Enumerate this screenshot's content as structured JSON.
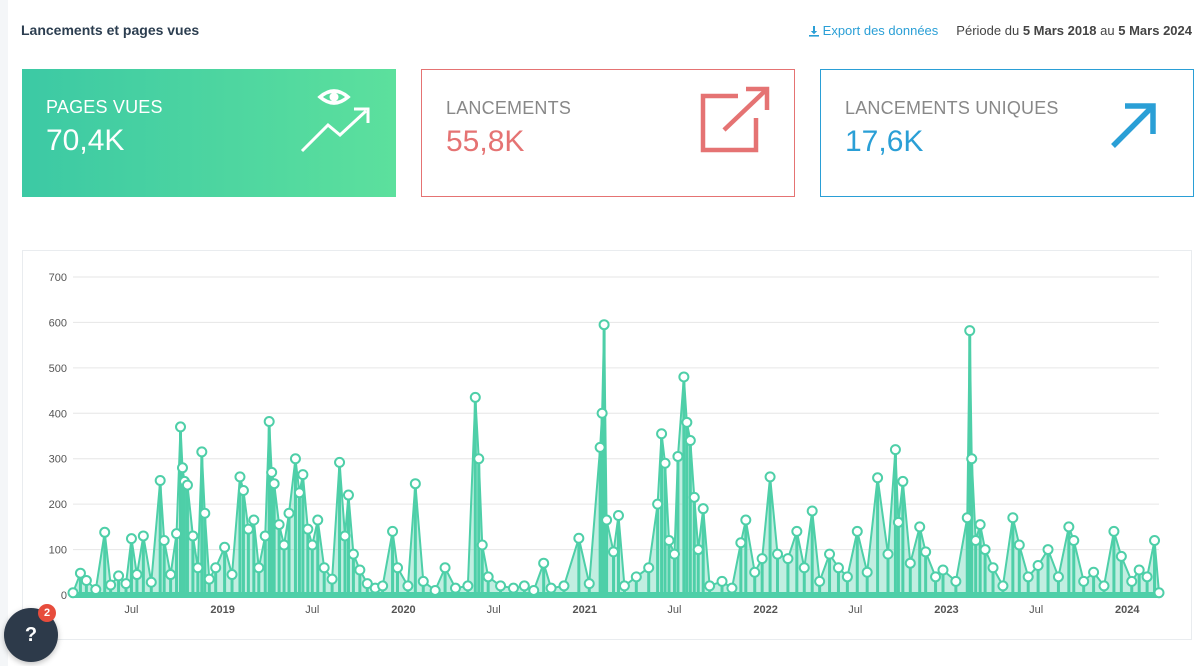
{
  "header": {
    "title": "Lancements et pages vues",
    "export_label": "Export des données",
    "period_prefix": "Période du",
    "period_start": "5 Mars 2018",
    "period_mid": "au",
    "period_end": "5 Mars 2024"
  },
  "cards": {
    "pages": {
      "label": "PAGES VUES",
      "value": "70,4K",
      "icon": "eye-trend-icon"
    },
    "launches": {
      "label": "LANCEMENTS",
      "value": "55,8K",
      "icon": "external-link-icon"
    },
    "unique": {
      "label": "LANCEMENTS UNIQUES",
      "value": "17,6K",
      "icon": "arrow-up-right-icon"
    }
  },
  "colors": {
    "accent_green": "#3cc9a4",
    "accent_red": "#e57373",
    "accent_blue": "#2a9fd6",
    "series": "#4ecfa8"
  },
  "help": {
    "label": "?",
    "badge": "2"
  },
  "chart_data": {
    "type": "line",
    "ylim": [
      0,
      700
    ],
    "yticks": [
      "0",
      "100",
      "200",
      "300",
      "400",
      "500",
      "600",
      "700"
    ],
    "xlim": [
      "2018-03-05",
      "2024-03-05"
    ],
    "xticks": [
      {
        "label": "Jul",
        "date": "2018-07-01",
        "bold": false
      },
      {
        "label": "2019",
        "date": "2019-01-01",
        "bold": true
      },
      {
        "label": "Jul",
        "date": "2019-07-01",
        "bold": false
      },
      {
        "label": "2020",
        "date": "2020-01-01",
        "bold": true
      },
      {
        "label": "Jul",
        "date": "2020-07-01",
        "bold": false
      },
      {
        "label": "2021",
        "date": "2021-01-01",
        "bold": true
      },
      {
        "label": "Jul",
        "date": "2021-07-01",
        "bold": false
      },
      {
        "label": "2022",
        "date": "2022-01-01",
        "bold": true
      },
      {
        "label": "Jul",
        "date": "2022-07-01",
        "bold": false
      },
      {
        "label": "2023",
        "date": "2023-01-01",
        "bold": true
      },
      {
        "label": "Jul",
        "date": "2023-07-01",
        "bold": false
      },
      {
        "label": "2024",
        "date": "2024-01-01",
        "bold": true
      }
    ],
    "grid": true,
    "series": [
      {
        "points": [
          [
            "2018-03-05",
            5
          ],
          [
            "2018-03-20",
            48
          ],
          [
            "2018-04-01",
            32
          ],
          [
            "2018-04-20",
            12
          ],
          [
            "2018-05-08",
            138
          ],
          [
            "2018-05-20",
            22
          ],
          [
            "2018-06-05",
            42
          ],
          [
            "2018-06-20",
            25
          ],
          [
            "2018-07-01",
            124
          ],
          [
            "2018-07-12",
            45
          ],
          [
            "2018-07-25",
            130
          ],
          [
            "2018-08-10",
            28
          ],
          [
            "2018-08-28",
            252
          ],
          [
            "2018-09-05",
            120
          ],
          [
            "2018-09-18",
            45
          ],
          [
            "2018-09-30",
            135
          ],
          [
            "2018-10-08",
            370
          ],
          [
            "2018-10-12",
            280
          ],
          [
            "2018-10-16",
            250
          ],
          [
            "2018-10-22",
            242
          ],
          [
            "2018-11-02",
            130
          ],
          [
            "2018-11-12",
            60
          ],
          [
            "2018-11-20",
            315
          ],
          [
            "2018-11-26",
            180
          ],
          [
            "2018-12-05",
            35
          ],
          [
            "2018-12-18",
            60
          ],
          [
            "2019-01-05",
            105
          ],
          [
            "2019-01-20",
            45
          ],
          [
            "2019-02-05",
            260
          ],
          [
            "2019-02-12",
            230
          ],
          [
            "2019-02-22",
            145
          ],
          [
            "2019-03-05",
            165
          ],
          [
            "2019-03-15",
            60
          ],
          [
            "2019-03-28",
            130
          ],
          [
            "2019-04-05",
            382
          ],
          [
            "2019-04-10",
            270
          ],
          [
            "2019-04-15",
            245
          ],
          [
            "2019-04-25",
            155
          ],
          [
            "2019-05-05",
            110
          ],
          [
            "2019-05-15",
            180
          ],
          [
            "2019-05-28",
            300
          ],
          [
            "2019-06-05",
            225
          ],
          [
            "2019-06-12",
            265
          ],
          [
            "2019-06-22",
            145
          ],
          [
            "2019-07-01",
            110
          ],
          [
            "2019-07-12",
            165
          ],
          [
            "2019-07-25",
            60
          ],
          [
            "2019-08-10",
            35
          ],
          [
            "2019-08-25",
            292
          ],
          [
            "2019-09-05",
            130
          ],
          [
            "2019-09-12",
            220
          ],
          [
            "2019-09-22",
            90
          ],
          [
            "2019-10-05",
            55
          ],
          [
            "2019-10-20",
            25
          ],
          [
            "2019-11-05",
            15
          ],
          [
            "2019-11-20",
            20
          ],
          [
            "2019-12-10",
            140
          ],
          [
            "2019-12-20",
            60
          ],
          [
            "2020-01-10",
            20
          ],
          [
            "2020-01-25",
            245
          ],
          [
            "2020-02-10",
            30
          ],
          [
            "2020-03-05",
            10
          ],
          [
            "2020-03-25",
            60
          ],
          [
            "2020-04-15",
            15
          ],
          [
            "2020-05-10",
            20
          ],
          [
            "2020-05-25",
            435
          ],
          [
            "2020-06-01",
            300
          ],
          [
            "2020-06-08",
            110
          ],
          [
            "2020-06-20",
            40
          ],
          [
            "2020-07-15",
            20
          ],
          [
            "2020-08-10",
            15
          ],
          [
            "2020-09-01",
            20
          ],
          [
            "2020-09-20",
            10
          ],
          [
            "2020-10-10",
            70
          ],
          [
            "2020-10-25",
            15
          ],
          [
            "2020-11-20",
            20
          ],
          [
            "2020-12-20",
            125
          ],
          [
            "2021-01-10",
            25
          ],
          [
            "2021-02-01",
            325
          ],
          [
            "2021-02-05",
            400
          ],
          [
            "2021-02-09",
            595
          ],
          [
            "2021-02-14",
            165
          ],
          [
            "2021-02-28",
            95
          ],
          [
            "2021-03-10",
            175
          ],
          [
            "2021-03-22",
            20
          ],
          [
            "2021-04-15",
            40
          ],
          [
            "2021-05-10",
            60
          ],
          [
            "2021-05-28",
            200
          ],
          [
            "2021-06-05",
            355
          ],
          [
            "2021-06-12",
            290
          ],
          [
            "2021-06-20",
            120
          ],
          [
            "2021-07-01",
            90
          ],
          [
            "2021-07-08",
            305
          ],
          [
            "2021-07-20",
            480
          ],
          [
            "2021-07-26",
            380
          ],
          [
            "2021-08-02",
            340
          ],
          [
            "2021-08-10",
            215
          ],
          [
            "2021-08-18",
            100
          ],
          [
            "2021-08-28",
            190
          ],
          [
            "2021-09-10",
            20
          ],
          [
            "2021-10-05",
            30
          ],
          [
            "2021-10-25",
            15
          ],
          [
            "2021-11-12",
            115
          ],
          [
            "2021-11-22",
            165
          ],
          [
            "2021-12-10",
            50
          ],
          [
            "2021-12-25",
            80
          ],
          [
            "2022-01-10",
            260
          ],
          [
            "2022-01-25",
            90
          ],
          [
            "2022-02-15",
            80
          ],
          [
            "2022-03-05",
            140
          ],
          [
            "2022-03-20",
            60
          ],
          [
            "2022-04-05",
            185
          ],
          [
            "2022-04-20",
            30
          ],
          [
            "2022-05-10",
            90
          ],
          [
            "2022-05-28",
            60
          ],
          [
            "2022-06-15",
            40
          ],
          [
            "2022-07-05",
            140
          ],
          [
            "2022-07-25",
            50
          ],
          [
            "2022-08-15",
            258
          ],
          [
            "2022-09-05",
            90
          ],
          [
            "2022-09-20",
            320
          ],
          [
            "2022-09-26",
            160
          ],
          [
            "2022-10-05",
            250
          ],
          [
            "2022-10-20",
            70
          ],
          [
            "2022-11-08",
            150
          ],
          [
            "2022-11-20",
            95
          ],
          [
            "2022-12-10",
            40
          ],
          [
            "2022-12-25",
            55
          ],
          [
            "2023-01-20",
            30
          ],
          [
            "2023-02-12",
            170
          ],
          [
            "2023-02-17",
            582
          ],
          [
            "2023-02-21",
            300
          ],
          [
            "2023-03-01",
            120
          ],
          [
            "2023-03-10",
            155
          ],
          [
            "2023-03-20",
            100
          ],
          [
            "2023-04-05",
            60
          ],
          [
            "2023-04-25",
            20
          ],
          [
            "2023-05-15",
            170
          ],
          [
            "2023-05-28",
            110
          ],
          [
            "2023-06-15",
            40
          ],
          [
            "2023-07-05",
            65
          ],
          [
            "2023-07-25",
            100
          ],
          [
            "2023-08-15",
            40
          ],
          [
            "2023-09-05",
            150
          ],
          [
            "2023-09-15",
            120
          ],
          [
            "2023-10-05",
            30
          ],
          [
            "2023-10-25",
            50
          ],
          [
            "2023-11-15",
            20
          ],
          [
            "2023-12-05",
            140
          ],
          [
            "2023-12-20",
            85
          ],
          [
            "2024-01-10",
            30
          ],
          [
            "2024-01-25",
            55
          ],
          [
            "2024-02-10",
            40
          ],
          [
            "2024-02-25",
            120
          ],
          [
            "2024-03-05",
            5
          ]
        ]
      }
    ]
  }
}
